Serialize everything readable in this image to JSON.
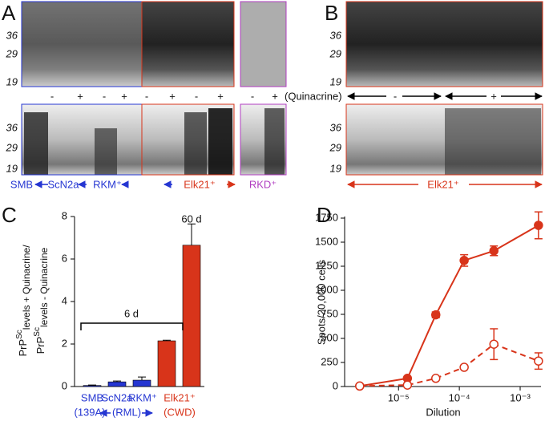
{
  "panel_a": {
    "label": "A",
    "markers_top": [
      "36",
      "29",
      "19"
    ],
    "markers_bottom": [
      "36",
      "29",
      "19"
    ],
    "lanes": [
      "-",
      "+",
      "-",
      "+",
      "-",
      "+",
      "-",
      "+"
    ],
    "rkd_lanes": [
      "-",
      "+"
    ],
    "cell_lines": [
      "SMB",
      "ScN2a",
      "RKM⁺",
      "Elk21⁺"
    ],
    "rkd": "RKD⁺"
  },
  "panel_b": {
    "label": "B",
    "markers_top": [
      "36",
      "29",
      "19"
    ],
    "markers_bottom": [
      "36",
      "29",
      "19"
    ],
    "treatment_label": "(Quinacrine)",
    "treatment": [
      "-",
      "+"
    ],
    "cell_line": "Elk21⁺"
  },
  "chart_data": [
    {
      "type": "bar",
      "panel": "C",
      "y_label": [
        [
          "PrP",
          "Sc",
          "levels + Quinacrine/"
        ],
        [
          "PrP",
          "Sc",
          "levels - Quinacrine"
        ]
      ],
      "values": [
        0.05,
        0.22,
        0.3,
        2.15,
        6.65
      ],
      "errors": [
        0.02,
        0.04,
        0.15,
        0.03,
        1.0
      ],
      "colors": [
        "#2536d2",
        "#2536d2",
        "#2536d2",
        "#d8341a",
        "#d8341a"
      ],
      "x_labels": [
        "SMB",
        "ScN2a",
        "RKM⁺",
        "Elk21⁺"
      ],
      "strain_labels": [
        "(139A)",
        "(RML)",
        "(CWD)"
      ],
      "annotations": [
        "6 d",
        "60 d"
      ],
      "ylim": [
        0,
        8
      ],
      "yticks": [
        0,
        2,
        4,
        6,
        8
      ]
    },
    {
      "type": "line",
      "panel": "D",
      "y_label": "Spots/20,000 cells",
      "x_label": "Dilution",
      "log_x": true,
      "x": [
        2.3e-06,
        1.4e-05,
        4.1e-05,
        0.00012,
        0.00037,
        0.002
      ],
      "series": [
        {
          "color": "#d8341a",
          "line_style": "solid",
          "marker": "filled",
          "values": [
            5,
            85,
            745,
            1310,
            1410,
            1675
          ],
          "errors": [
            5,
            10,
            30,
            60,
            50,
            140
          ]
        },
        {
          "color": "#d8341a",
          "line_style": "dashed",
          "marker": "open",
          "values": [
            5,
            15,
            85,
            200,
            440,
            265
          ],
          "errors": [
            2,
            5,
            10,
            15,
            160,
            85
          ]
        }
      ],
      "xlim": [
        1.3e-06,
        0.0022
      ],
      "xticks": [
        {
          "value": 1e-05,
          "label": "10⁻⁵"
        },
        {
          "value": 0.0001,
          "label": "10⁻⁴"
        },
        {
          "value": 0.001,
          "label": "10⁻³"
        }
      ],
      "ylim": [
        0,
        1750
      ],
      "yticks": [
        0,
        250,
        500,
        750,
        1000,
        1250,
        1500,
        1750
      ]
    }
  ]
}
